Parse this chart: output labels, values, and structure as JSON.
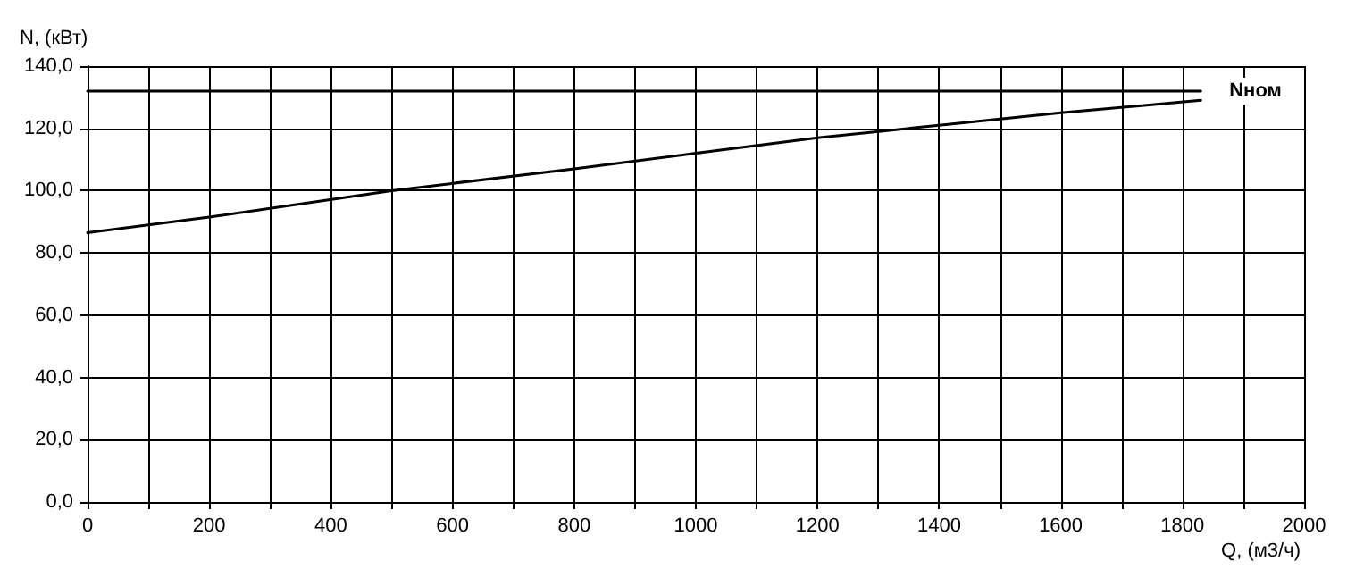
{
  "chart_data": {
    "type": "line",
    "xlabel": "Q, (м3/ч)",
    "ylabel": "N, (кВт)",
    "series": [
      {
        "color": "#000000",
        "x": [
          0,
          200,
          500,
          800,
          1000,
          1200,
          1400,
          1600,
          1830
        ],
        "values": [
          86.5,
          91.5,
          100,
          107,
          112,
          117,
          121,
          125,
          129
        ]
      },
      {
        "name": "Nном",
        "color": "#000000",
        "x": [
          0,
          1830
        ],
        "values": [
          132,
          132
        ]
      }
    ],
    "xlim": [
      0,
      2000
    ],
    "xticks": [
      0,
      {
        "value": 100,
        "label": null
      },
      200,
      {
        "value": 300,
        "label": null
      },
      400,
      {
        "value": 500,
        "label": null
      },
      600,
      {
        "value": 700,
        "label": null
      },
      800,
      {
        "value": 900,
        "label": null
      },
      1000,
      {
        "value": 1100,
        "label": null
      },
      1200,
      {
        "value": 1300,
        "label": null
      },
      1400,
      {
        "value": 1500,
        "label": null
      },
      1600,
      {
        "value": 1700,
        "label": null
      },
      1800,
      {
        "value": 1900,
        "label": null
      },
      2000
    ],
    "ylim": [
      0,
      140
    ],
    "yticks": [
      {
        "value": 0,
        "label": "0,0"
      },
      {
        "value": 20,
        "label": "20,0"
      },
      {
        "value": 40,
        "label": "40,0"
      },
      {
        "value": 60,
        "label": "60,0"
      },
      {
        "value": 80,
        "label": "80,0"
      },
      {
        "value": 100,
        "label": "100,0"
      },
      {
        "value": 120,
        "label": "120,0"
      },
      {
        "value": 140,
        "label": "140,0"
      }
    ],
    "grid": true,
    "legend": false,
    "marker": "none",
    "line_style": "solid"
  }
}
